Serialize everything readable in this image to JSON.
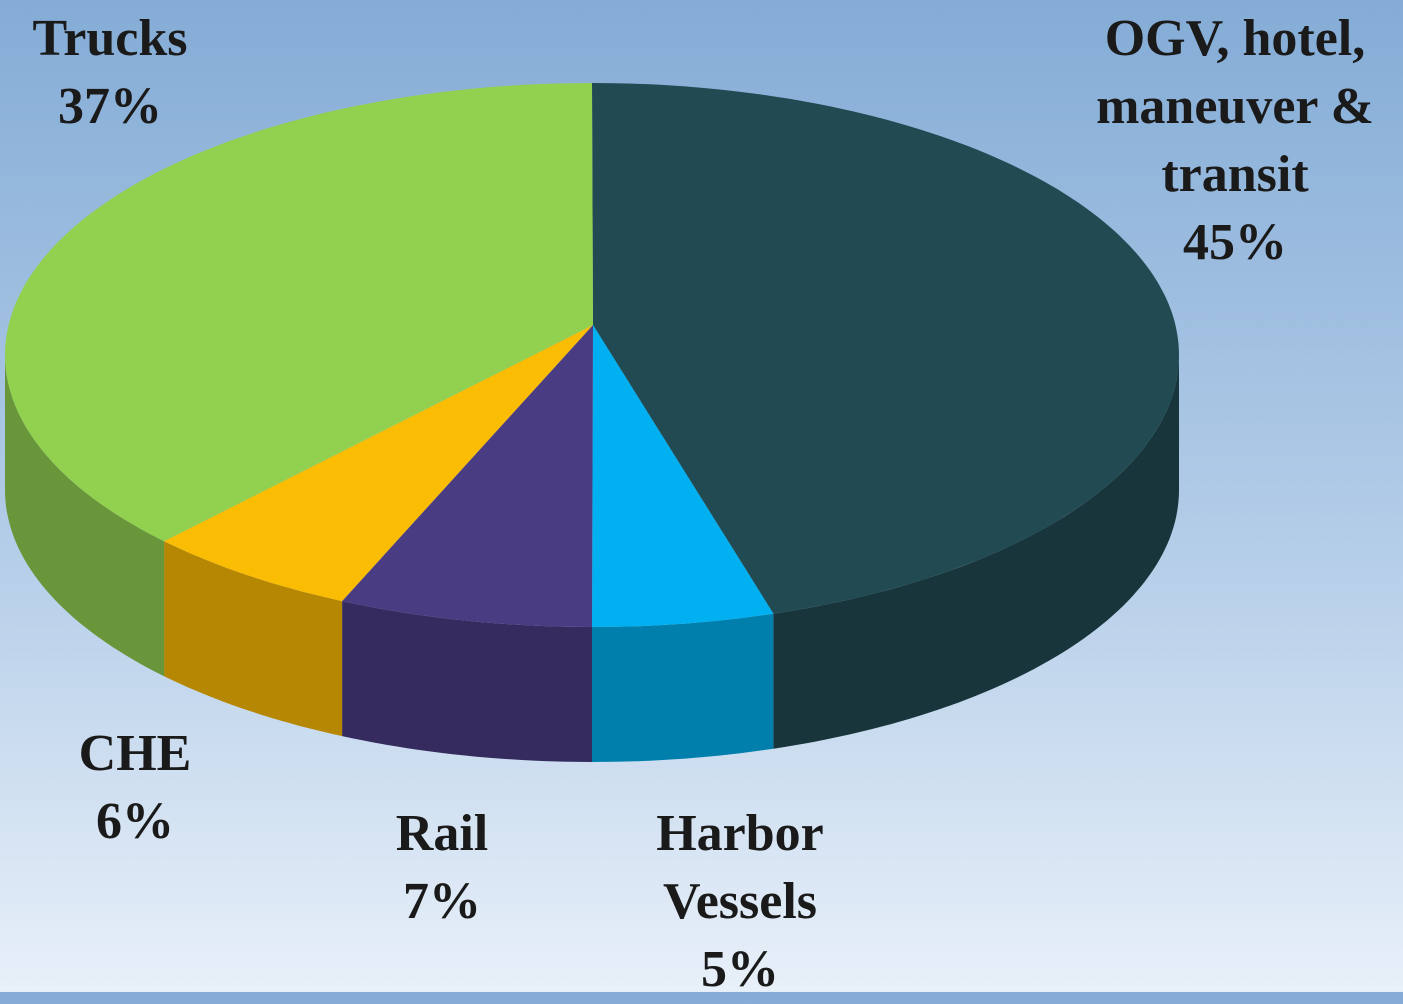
{
  "chart_data": {
    "type": "pie3d",
    "categories": [
      "OGV, hotel, maneuver & transit",
      "Harbor Vessels",
      "Rail",
      "CHE",
      "Trucks"
    ],
    "values": [
      45,
      5,
      7,
      6,
      37
    ],
    "value_labels": [
      "45%",
      "5%",
      "7%",
      "6%",
      "37%"
    ],
    "colors": [
      "#214a52",
      "#00b0f0",
      "#4a3c82",
      "#fbbc04",
      "#92d050"
    ]
  }
}
